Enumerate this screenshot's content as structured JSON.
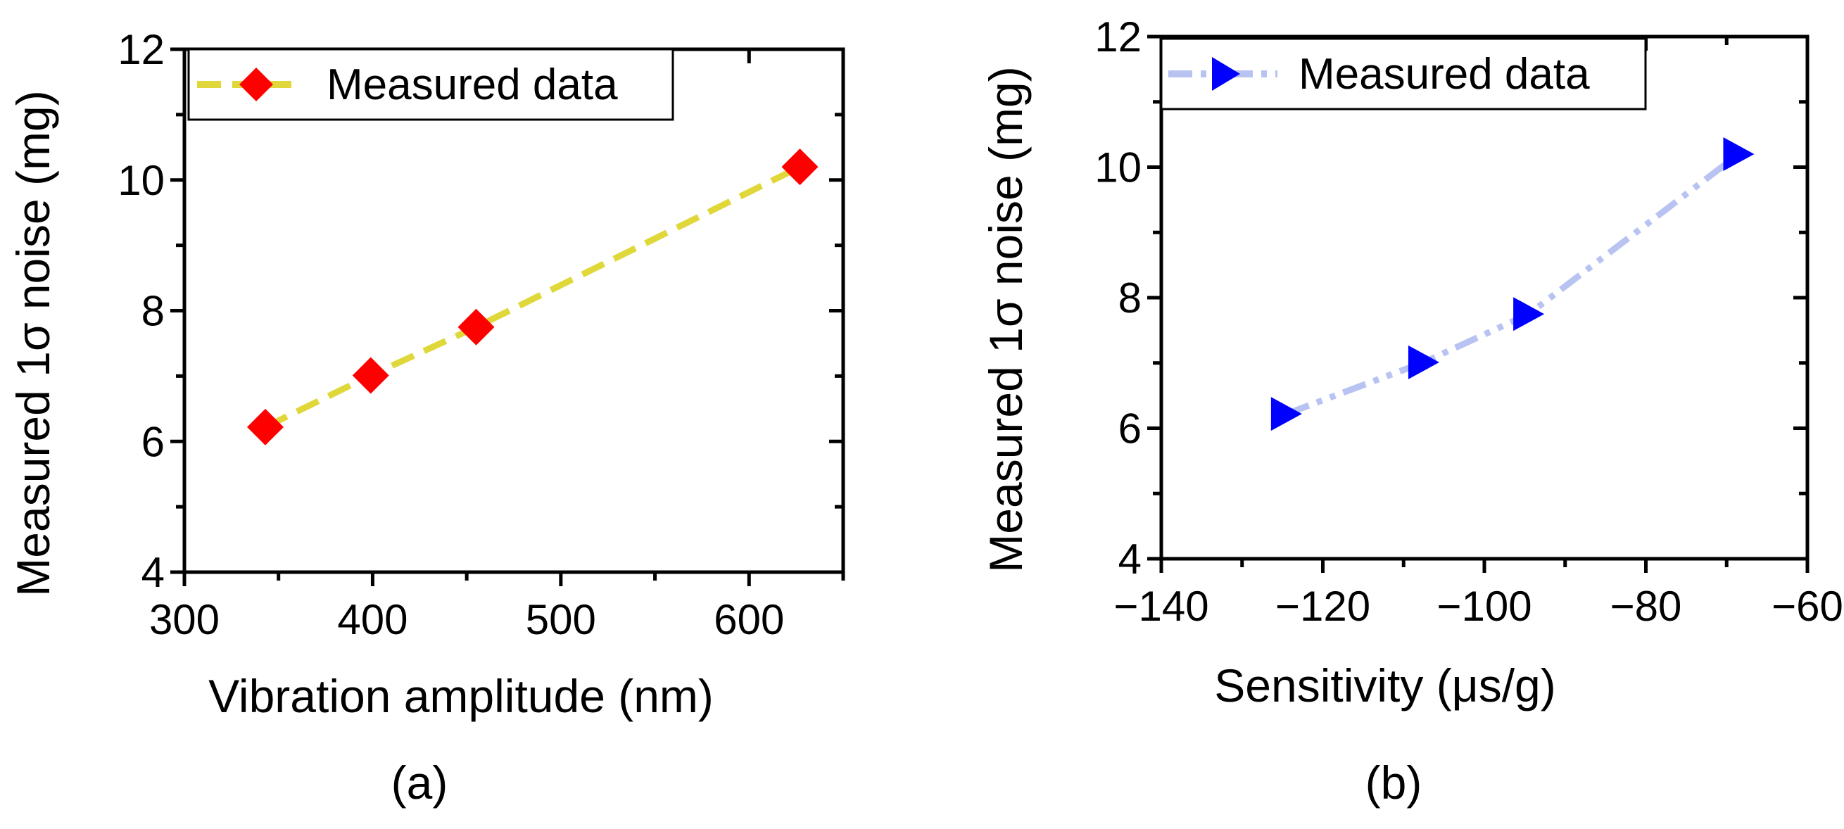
{
  "chart_data": [
    {
      "type": "line",
      "panel_label": "(a)",
      "xlabel": "Vibration amplitude (nm)",
      "ylabel": "Measured 1σ noise (mg)",
      "xlim": [
        300,
        650
      ],
      "ylim": [
        4,
        12
      ],
      "xticks": [
        300,
        400,
        500,
        600
      ],
      "xtick_labels": [
        "300",
        "400",
        "500",
        "600"
      ],
      "xminor": [
        350,
        450,
        550,
        650
      ],
      "yticks": [
        4,
        6,
        8,
        10,
        12
      ],
      "ytick_labels": [
        "4",
        "6",
        "8",
        "10",
        "12"
      ],
      "yminor": [
        5,
        7,
        9,
        11
      ],
      "grid": false,
      "legend_position": "top-left",
      "series": [
        {
          "name": "Measured data",
          "marker": "diamond",
          "marker_color": "#ff0000",
          "line_color": "#e0d83a",
          "line_style": "dashed",
          "x": [
            343,
            399,
            455,
            627
          ],
          "y": [
            6.22,
            7.01,
            7.75,
            10.2
          ]
        }
      ]
    },
    {
      "type": "line",
      "panel_label": "(b)",
      "xlabel": "Sensitivity (μs/g)",
      "ylabel": "Measured 1σ noise (mg)",
      "xlim": [
        -140,
        -60
      ],
      "ylim": [
        4,
        12
      ],
      "xticks": [
        -140,
        -120,
        -100,
        -80,
        -60
      ],
      "xtick_labels": [
        "−140",
        "−120",
        "−100",
        "−80",
        "−60"
      ],
      "xminor": [
        -130,
        -110,
        -90,
        -70
      ],
      "yticks": [
        4,
        6,
        8,
        10,
        12
      ],
      "ytick_labels": [
        "4",
        "6",
        "8",
        "10",
        "12"
      ],
      "yminor": [
        5,
        7,
        9,
        11
      ],
      "grid": false,
      "legend_position": "top-left",
      "series": [
        {
          "name": "Measured data",
          "marker": "triangle-right",
          "marker_color": "#0000ff",
          "line_color": "#b8c3f2",
          "line_style": "dash-dot-dot",
          "x": [
            -124.5,
            -107.5,
            -94.5,
            -68.5
          ],
          "y": [
            6.22,
            7.01,
            7.75,
            10.2
          ]
        }
      ]
    }
  ]
}
